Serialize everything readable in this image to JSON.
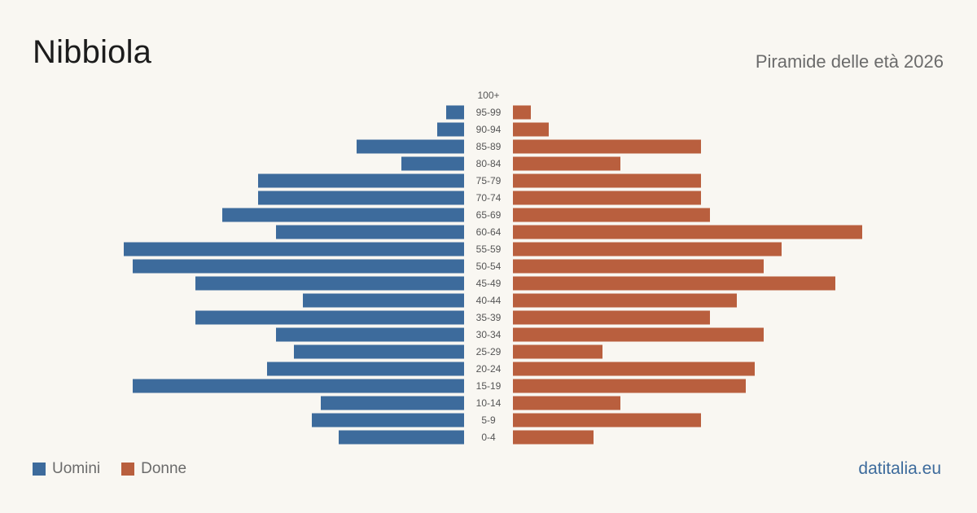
{
  "title": "Nibbiola",
  "subtitle": "Piramide delle età 2026",
  "source": "datitalia.eu",
  "colors": {
    "men": "#3d6b9c",
    "women": "#b95f3e",
    "background": "#f9f7f2"
  },
  "chart_data": {
    "type": "bar",
    "orientation": "horizontal-population-pyramid",
    "categories": [
      "100+",
      "95-99",
      "90-94",
      "85-89",
      "80-84",
      "75-79",
      "70-74",
      "65-69",
      "60-64",
      "55-59",
      "50-54",
      "45-49",
      "40-44",
      "35-39",
      "30-34",
      "25-29",
      "20-24",
      "15-19",
      "10-14",
      "5-9",
      "0-4"
    ],
    "series": [
      {
        "name": "Uomini",
        "values": [
          0,
          2,
          3,
          12,
          7,
          23,
          23,
          27,
          21,
          38,
          37,
          30,
          18,
          30,
          21,
          19,
          22,
          37,
          16,
          17,
          14
        ]
      },
      {
        "name": "Donne",
        "values": [
          0,
          2,
          4,
          21,
          12,
          21,
          21,
          22,
          39,
          30,
          28,
          36,
          25,
          22,
          28,
          10,
          27,
          26,
          12,
          21,
          9
        ]
      }
    ],
    "legend": "bottom-left",
    "grid": false
  }
}
